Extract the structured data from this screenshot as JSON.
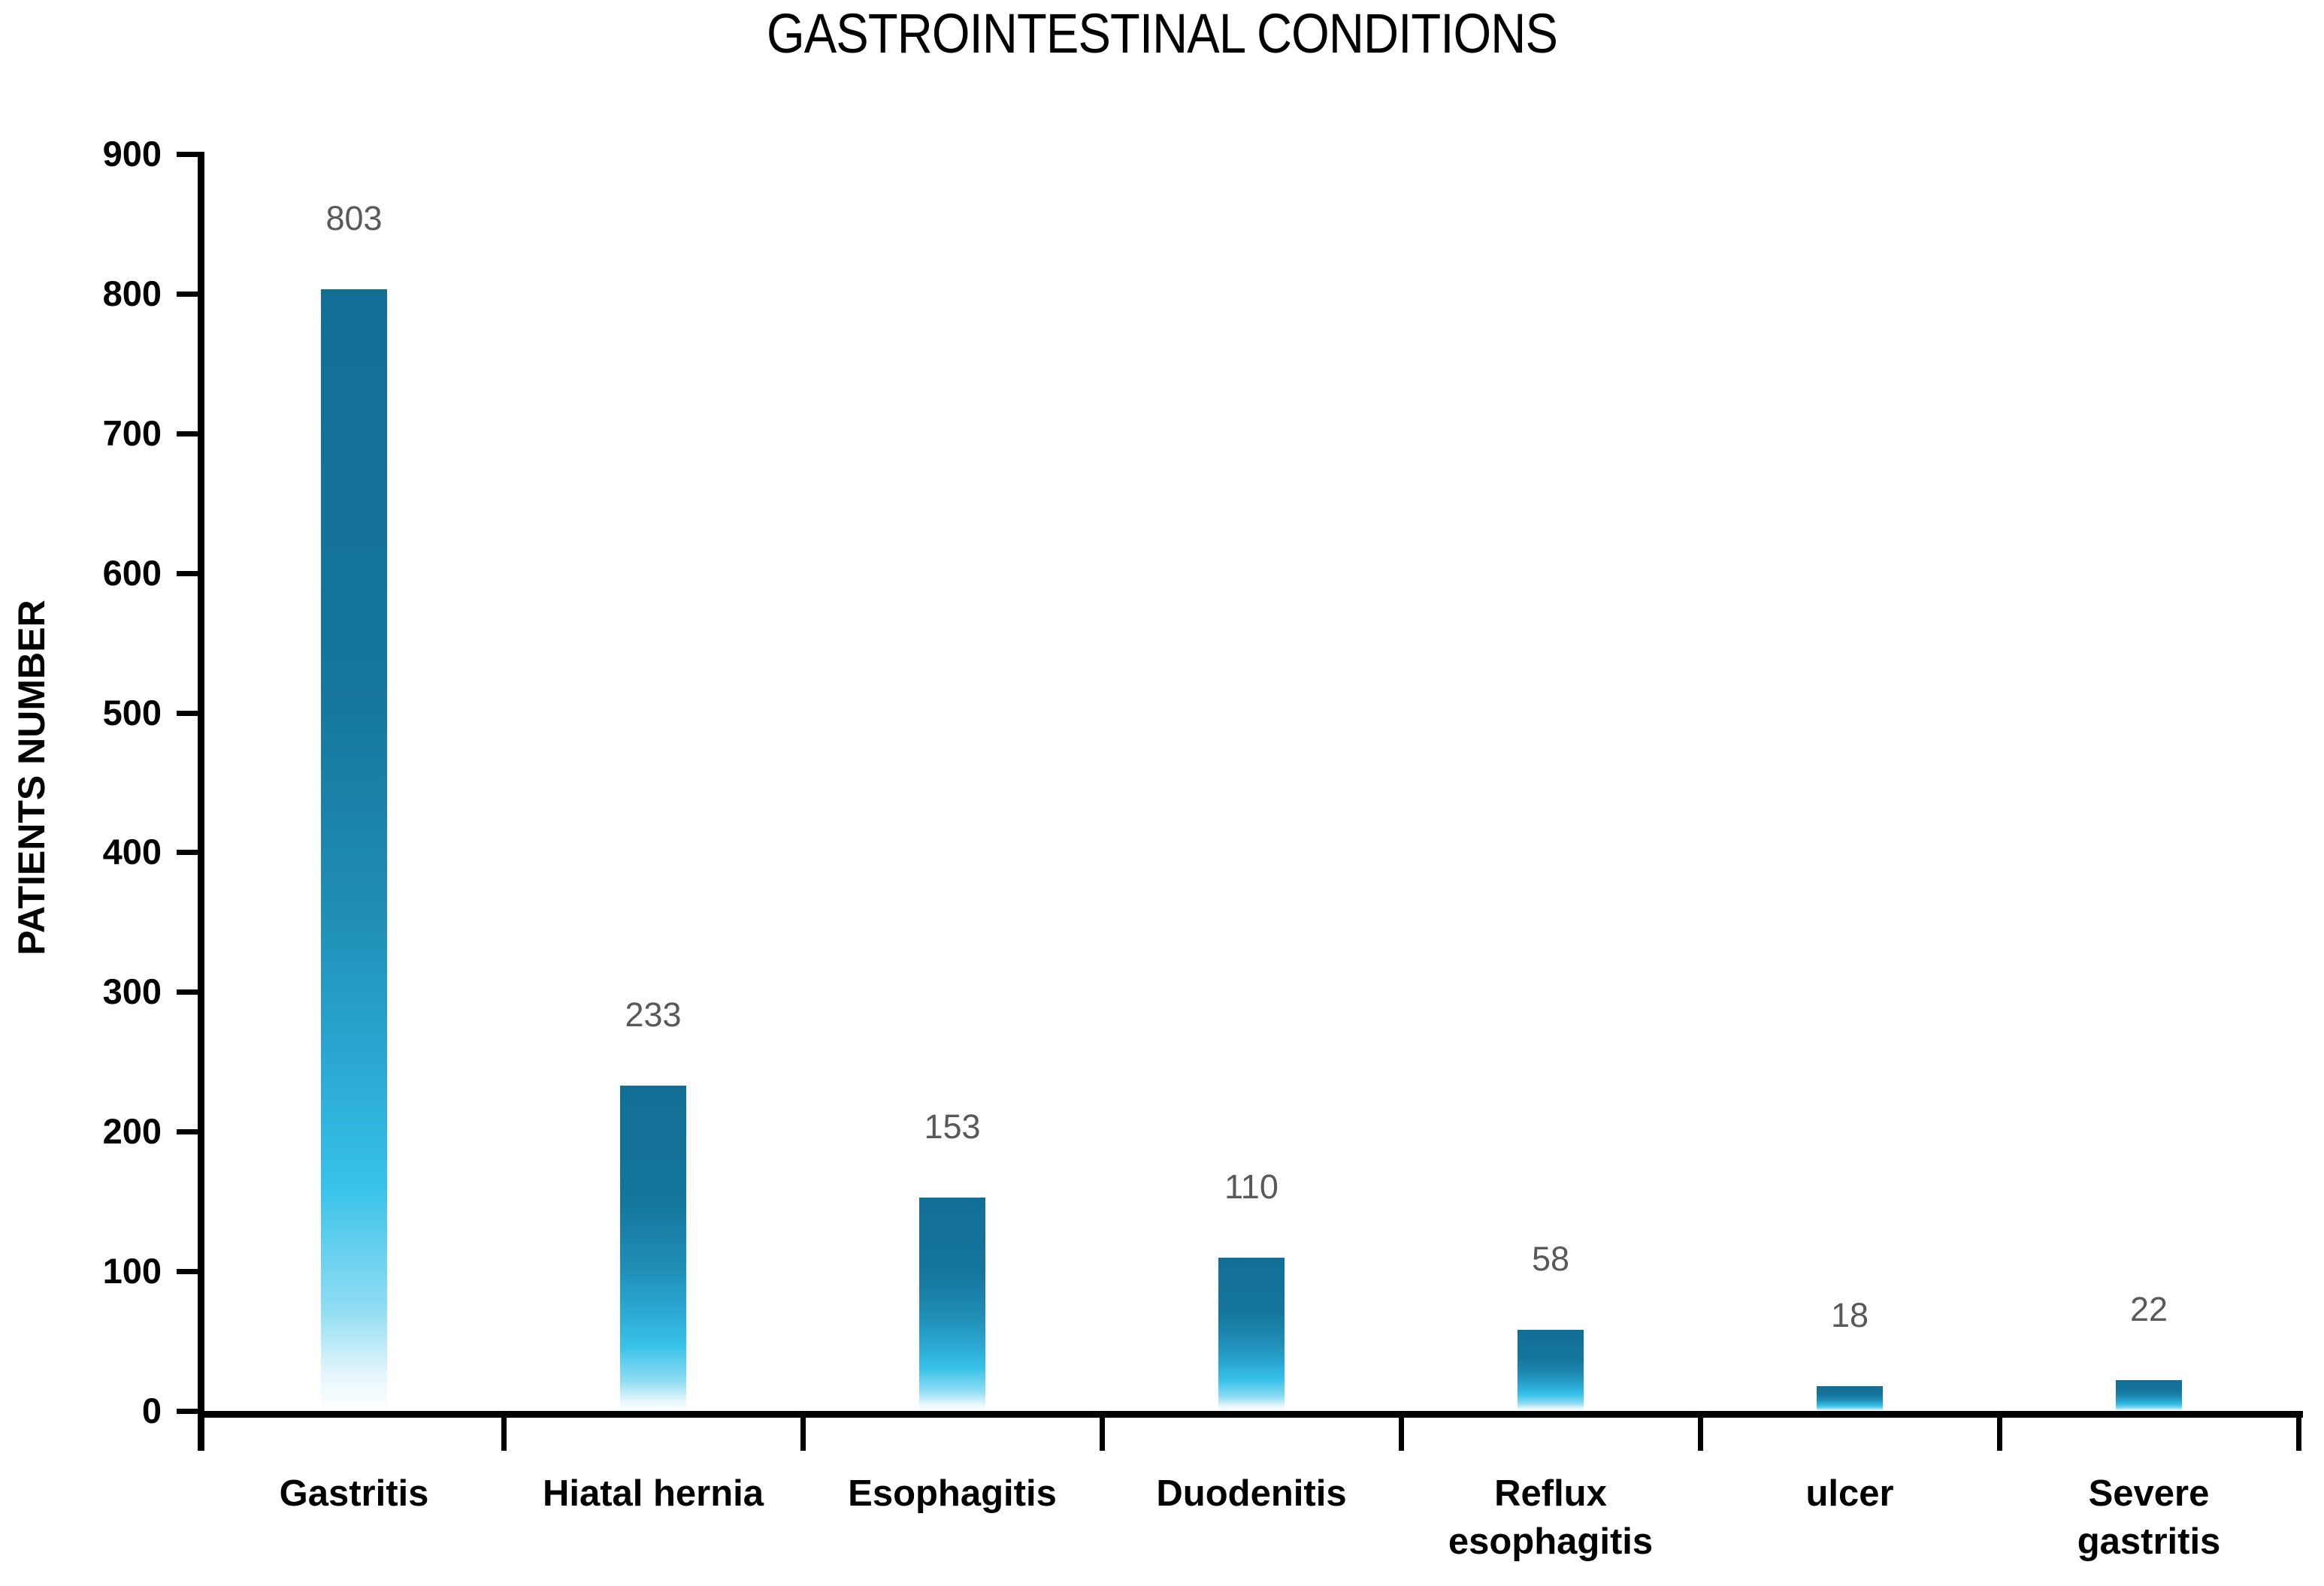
{
  "chart_data": {
    "type": "bar",
    "title": "GASTROINTESTINAL CONDITIONS",
    "ylabel": "PATIENTS NUMBER",
    "xlabel": "",
    "categories": [
      "Gastritis",
      "Hiatal hernia",
      "Esophagitis",
      "Duodenitis",
      "Reflux\nesophagitis",
      "ulcer",
      "Severe\ngastritis"
    ],
    "values": [
      803,
      233,
      153,
      110,
      58,
      18,
      22
    ],
    "data_labels": [
      "803",
      "233",
      "153",
      "110",
      "58",
      "18",
      "22"
    ],
    "ylim": [
      0,
      900
    ],
    "yticks": [
      0,
      100,
      200,
      300,
      400,
      500,
      600,
      700,
      800,
      900
    ],
    "grid": false,
    "legend": false,
    "value_label_color": "#595959",
    "axis_color": "#000000",
    "bar_gradient_stops": [
      {
        "color": "#126e95",
        "pos": 0
      },
      {
        "color": "#15759c",
        "pos": 35
      },
      {
        "color": "#1f8db5",
        "pos": 55
      },
      {
        "color": "#2baad4",
        "pos": 70
      },
      {
        "color": "#38c2e9",
        "pos": 80
      },
      {
        "color": "#90ddf3",
        "pos": 91
      },
      {
        "color": "#e8f7fc",
        "pos": 97
      },
      {
        "color": "#ffffff",
        "pos": 100
      }
    ]
  }
}
